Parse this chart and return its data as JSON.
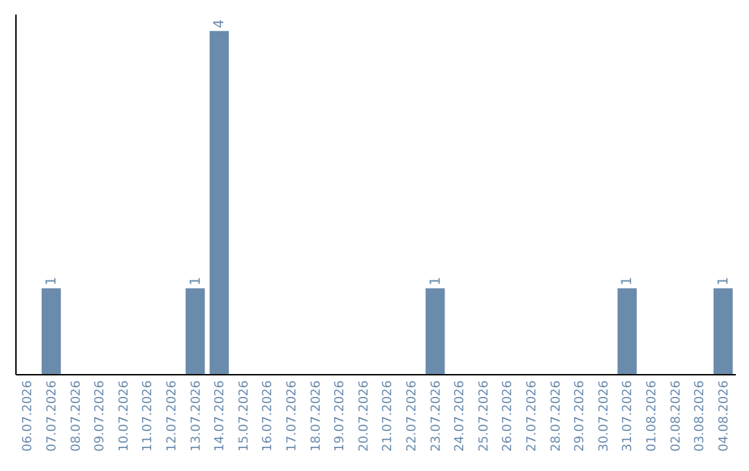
{
  "chart_data": {
    "type": "bar",
    "categories": [
      "06.07.2026",
      "07.07.2026",
      "08.07.2026",
      "09.07.2026",
      "10.07.2026",
      "11.07.2026",
      "12.07.2026",
      "13.07.2026",
      "14.07.2026",
      "15.07.2026",
      "16.07.2026",
      "17.07.2026",
      "18.07.2026",
      "19.07.2026",
      "20.07.2026",
      "21.07.2026",
      "22.07.2026",
      "23.07.2026",
      "24.07.2026",
      "25.07.2026",
      "26.07.2026",
      "27.07.2026",
      "28.07.2026",
      "29.07.2026",
      "30.07.2026",
      "31.07.2026",
      "01.08.2026",
      "02.08.2026",
      "03.08.2026",
      "04.08.2026"
    ],
    "values": [
      0,
      1,
      0,
      0,
      0,
      0,
      0,
      1,
      4,
      0,
      0,
      0,
      0,
      0,
      0,
      0,
      0,
      1,
      0,
      0,
      0,
      0,
      0,
      0,
      0,
      1,
      0,
      0,
      0,
      1
    ],
    "value_labels": [
      null,
      "1",
      null,
      null,
      null,
      null,
      null,
      "1",
      "4",
      null,
      null,
      null,
      null,
      null,
      null,
      null,
      null,
      "1",
      null,
      null,
      null,
      null,
      null,
      null,
      null,
      "1",
      null,
      null,
      null,
      "1"
    ],
    "color": "#6a8bab",
    "ylim": [
      0,
      4.2
    ],
    "tick_labels": "x"
  }
}
